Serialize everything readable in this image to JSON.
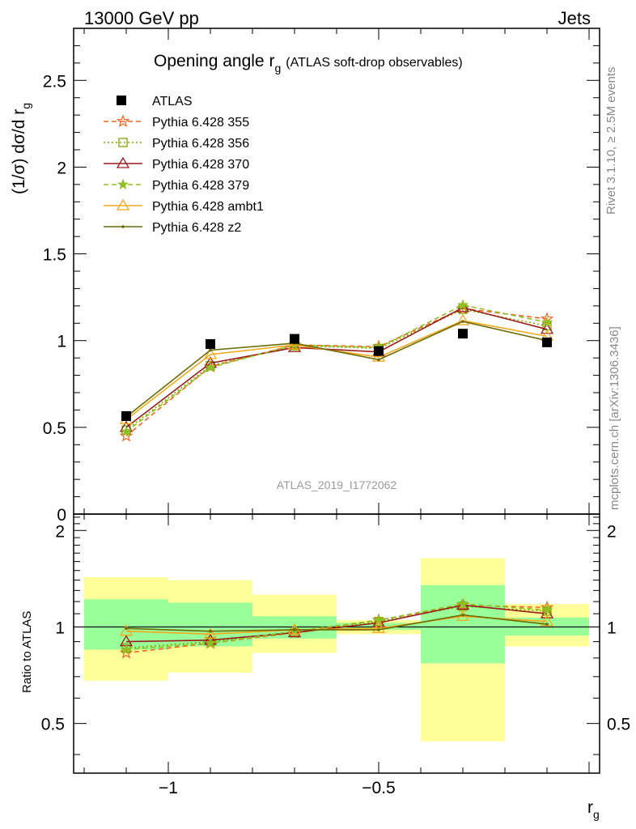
{
  "header": {
    "left": "13000 GeV pp",
    "right": "Jets"
  },
  "side": {
    "rivet": "Rivet 3.1.10, ≥ 2.5M events",
    "mcplots": "mcplots.cern.ch [arXiv:1306.3436]"
  },
  "chart_data": {
    "type": "line",
    "title_main": "Opening angle r",
    "title_sub": "g",
    "title_extra": "(ATLAS soft-drop observables)",
    "watermark": "ATLAS_2019_I1772062",
    "xlabel_main": "r",
    "xlabel_sub": "g",
    "ylabel_top": "(1/σ) dσ/d r",
    "ylabel_top_sub": "g",
    "ylabel_bottom": "Ratio to ATLAS",
    "xlim": [
      -1.225,
      0.025
    ],
    "ylim_top": [
      0,
      2.8
    ],
    "ylim_bottom": [
      0.35,
      2.25
    ],
    "x_ticks": [
      {
        "v": -1,
        "label": "−1"
      },
      {
        "v": -0.5,
        "label": "−0.5"
      }
    ],
    "y_ticks_top": [
      {
        "v": 0,
        "label": "0"
      },
      {
        "v": 0.5,
        "label": "0.5"
      },
      {
        "v": 1,
        "label": "1"
      },
      {
        "v": 1.5,
        "label": "1.5"
      },
      {
        "v": 2,
        "label": "2"
      },
      {
        "v": 2.5,
        "label": "2.5"
      }
    ],
    "y_ticks_bottom": [
      {
        "v": 0.5,
        "label": "0.5"
      },
      {
        "v": 1,
        "label": "1"
      },
      {
        "v": 2,
        "label": "2"
      }
    ],
    "x": [
      -1.1,
      -0.9,
      -0.7,
      -0.5,
      -0.3,
      -0.1
    ],
    "bins": [
      [
        -1.2,
        -1.0
      ],
      [
        -1.0,
        -0.8
      ],
      [
        -0.8,
        -0.6
      ],
      [
        -0.6,
        -0.4
      ],
      [
        -0.4,
        -0.2
      ],
      [
        -0.2,
        0.0
      ]
    ],
    "data": {
      "name": "ATLAS",
      "values": [
        0.565,
        0.98,
        1.01,
        0.94,
        1.04,
        0.99
      ]
    },
    "band_inner": [
      [
        0.85,
        1.22
      ],
      [
        0.87,
        1.19
      ],
      [
        0.92,
        1.08
      ],
      [
        0.98,
        1.03
      ],
      [
        0.77,
        1.35
      ],
      [
        0.94,
        1.07
      ]
    ],
    "band_outer": [
      [
        0.68,
        1.43
      ],
      [
        0.72,
        1.4
      ],
      [
        0.83,
        1.26
      ],
      [
        0.95,
        1.05
      ],
      [
        0.44,
        1.64
      ],
      [
        0.87,
        1.18
      ]
    ],
    "series": [
      {
        "name": "Pythia 6.428 355",
        "color": "#f26522",
        "dash": "6,4",
        "marker": "star",
        "values": [
          0.45,
          0.85,
          0.975,
          0.965,
          1.185,
          1.125
        ],
        "ratio": [
          0.83,
          0.89,
          0.96,
          1.05,
          1.17,
          1.15
        ]
      },
      {
        "name": "Pythia 6.428 356",
        "color": "#7fa600",
        "dash": "2,3",
        "marker": "square-open",
        "values": [
          0.485,
          0.855,
          0.97,
          0.955,
          1.18,
          1.085
        ],
        "ratio": [
          0.86,
          0.9,
          0.96,
          1.04,
          1.16,
          1.12
        ]
      },
      {
        "name": "Pythia 6.428 370",
        "color": "#9b1c1c",
        "dash": "",
        "marker": "triangle-open",
        "values": [
          0.5,
          0.87,
          0.96,
          0.935,
          1.19,
          1.065
        ],
        "ratio": [
          0.9,
          0.91,
          0.96,
          1.03,
          1.17,
          1.1
        ]
      },
      {
        "name": "Pythia 6.428 379",
        "color": "#8fbf24",
        "dash": "6,4",
        "marker": "star-filled",
        "values": [
          0.475,
          0.845,
          0.975,
          0.96,
          1.205,
          1.105
        ],
        "ratio": [
          0.85,
          0.89,
          0.97,
          1.05,
          1.18,
          1.13
        ]
      },
      {
        "name": "Pythia 6.428 ambt1",
        "color": "#f2a81d",
        "dash": "",
        "marker": "triangle-open",
        "values": [
          0.545,
          0.92,
          0.975,
          0.905,
          1.115,
          1.025
        ],
        "ratio": [
          0.97,
          0.95,
          0.98,
          0.99,
          1.08,
          1.04
        ]
      },
      {
        "name": "Pythia 6.428 z2",
        "color": "#6b6b00",
        "dash": "",
        "marker": "dot",
        "values": [
          0.56,
          0.945,
          0.985,
          0.89,
          1.11,
          1.0
        ],
        "ratio": [
          0.99,
          0.97,
          0.98,
          0.98,
          1.09,
          1.02
        ]
      }
    ]
  }
}
